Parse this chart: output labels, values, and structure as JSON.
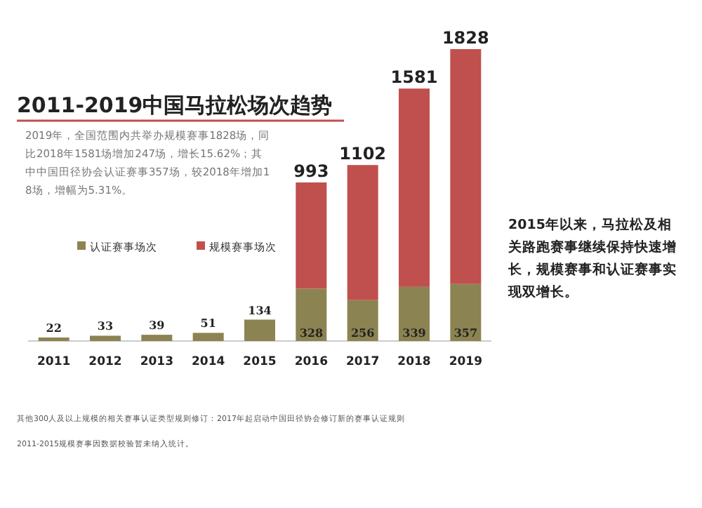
{
  "chart_data": {
    "type": "bar",
    "stacked": true,
    "title": "2011-2019中国马拉松场次趋势",
    "subtitle": "2019年，全国范围内共举办规模赛事1828场，同比2018年1581场增加247场，增长15.62%；其中中国田径协会认证赛事357场，较2018年增加18场，增幅为5.31%。",
    "categories": [
      "2011",
      "2012",
      "2013",
      "2014",
      "2015",
      "2016",
      "2017",
      "2018",
      "2019"
    ],
    "series": [
      {
        "name": "认证赛事场次",
        "color": "#8c8352",
        "values": [
          22,
          33,
          39,
          51,
          134,
          328,
          256,
          339,
          357
        ],
        "value_labels": [
          null,
          null,
          null,
          null,
          null,
          "328",
          "256",
          "339",
          "357"
        ]
      },
      {
        "name": "规模赛事场次",
        "color": "#c0504d",
        "values": [
          null,
          null,
          null,
          null,
          null,
          665,
          846,
          1242,
          1471
        ]
      }
    ],
    "totals": [
      "22",
      "33",
      "39",
      "51",
      "134",
      "993",
      "1102",
      "1581",
      "1828"
    ],
    "legend": "left",
    "annotations": [
      "2015年以来，马拉松及相关路跑赛事继续保持快速增长，规模赛事和认证赛事实现双增长。",
      "其他300人及以上规模的相关赛事认证类型规则修订：2017年起启动中国田径协会修订新的赛事认证规则",
      "2011-2015规模赛事因数据校验暂未纳入统计。"
    ]
  }
}
